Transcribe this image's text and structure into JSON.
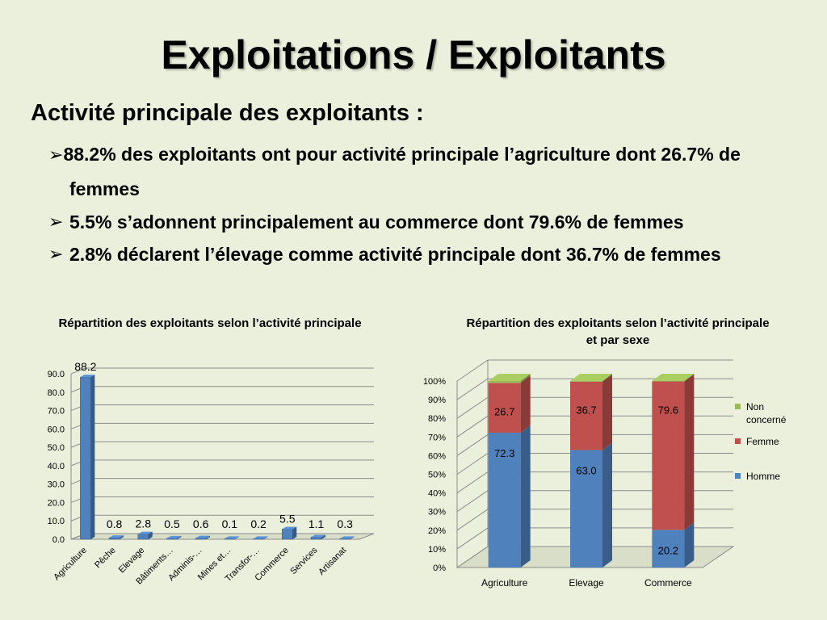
{
  "title": "Exploitations / Exploitants",
  "subtitle": "Activité principale des exploitants :",
  "bullets": [
    "88.2% des exploitants ont pour activité principale l’agriculture dont 26.7% de femmes",
    "5.5% s’adonnent principalement au commerce dont 79.6% de femmes",
    "2.8% déclarent l’élevage comme activité principale dont 36.7% de femmes"
  ],
  "bullet_icon": "arrow-bullet-icon",
  "colors": {
    "background": "#ebf0dc",
    "bar_blue": "#4f81bd",
    "bar_red": "#c0504d",
    "bar_green": "#9bbb59"
  },
  "chart_data": [
    {
      "type": "bar",
      "title": "Répartition des exploitants selon l’activité principale",
      "categories": [
        "Agriculture",
        "Pêche",
        "Elevage",
        "Bâtiments…",
        "Adminis-…",
        "Mines et…",
        "Transfor-…",
        "Commerce",
        "Services",
        "Artisanat"
      ],
      "values": [
        88.2,
        0.8,
        2.8,
        0.5,
        0.6,
        0.1,
        0.2,
        5.5,
        1.1,
        0.3
      ],
      "value_labels": [
        "88.2",
        "0.8",
        "2.8",
        "0.5",
        "0.6",
        "0.1",
        "0.2",
        "5.5",
        "1.1",
        "0.3"
      ],
      "yticks": [
        "0.0",
        "10.0",
        "20.0",
        "30.0",
        "40.0",
        "50.0",
        "60.0",
        "70.0",
        "80.0",
        "90.0"
      ],
      "ylim": [
        0,
        90
      ],
      "grid": true,
      "legend": "none"
    },
    {
      "type": "bar",
      "stacked": true,
      "percent": true,
      "title": "Répartition des exploitants selon l’activité principale et par sexe",
      "categories": [
        "Agriculture",
        "Elevage",
        "Commerce"
      ],
      "series": [
        {
          "name": "Homme",
          "values": [
            72.3,
            63.0,
            20.2
          ],
          "labels": [
            "72.3",
            "63.0",
            "20.2"
          ],
          "color": "#4f81bd"
        },
        {
          "name": "Femme",
          "values": [
            26.7,
            36.7,
            79.6
          ],
          "labels": [
            "26.7",
            "36.7",
            "79.6"
          ],
          "color": "#c0504d"
        },
        {
          "name": "Non concerné",
          "values": [
            1.0,
            0.3,
            0.2
          ],
          "labels": [
            "",
            "",
            ""
          ],
          "color": "#9bbb59"
        }
      ],
      "yticks": [
        "0%",
        "10%",
        "20%",
        "30%",
        "40%",
        "50%",
        "60%",
        "70%",
        "80%",
        "90%",
        "100%"
      ],
      "ylim": [
        0,
        100
      ],
      "grid": true,
      "legend": "right"
    }
  ]
}
